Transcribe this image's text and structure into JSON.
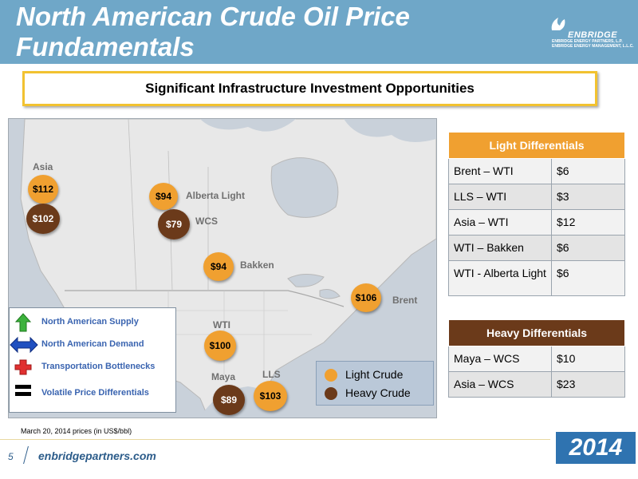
{
  "header": {
    "title": "North American Crude Oil Price Fundamentals"
  },
  "logo": {
    "name": "ENBRIDGE",
    "line1": "ENBRIDGE ENERGY PARTNERS, L.P.",
    "line2": "ENBRIDGE ENERGY MANAGEMENT, L.L.C."
  },
  "banner": {
    "text": "Significant Infrastructure Investment Opportunities"
  },
  "map": {
    "labels": {
      "asia": "Asia",
      "alberta_light": "Alberta Light",
      "wcs": "WCS",
      "bakken": "Bakken",
      "brent": "Brent",
      "wti": "WTI",
      "maya": "Maya",
      "lls": "LLS"
    },
    "prices": {
      "asia_light": "$112",
      "asia_heavy": "$102",
      "alberta_light": "$94",
      "wcs": "$79",
      "bakken": "$94",
      "brent": "$106",
      "wti": "$100",
      "maya": "$89",
      "lls": "$103"
    },
    "legend": [
      {
        "icon": "green-up-arrow-icon",
        "label": "North American Supply"
      },
      {
        "icon": "blue-double-arrow-icon",
        "label": "North American Demand"
      },
      {
        "icon": "red-plus-icon",
        "label": "Transportation Bottlenecks"
      },
      {
        "icon": "black-equals-icon",
        "label": "Volatile Price Differentials"
      }
    ],
    "crude_legend": {
      "light": "Light Crude",
      "heavy": "Heavy Crude"
    }
  },
  "light_differentials": {
    "title": "Light Differentials",
    "rows": [
      {
        "pair": "Brent – WTI",
        "value": "$6"
      },
      {
        "pair": "LLS – WTI",
        "value": "$3"
      },
      {
        "pair": "Asia – WTI",
        "value": "$12"
      },
      {
        "pair": "WTI – Bakken",
        "value": "$6"
      },
      {
        "pair": "WTI - Alberta Light",
        "value": "$6"
      }
    ]
  },
  "heavy_differentials": {
    "title": "Heavy Differentials",
    "rows": [
      {
        "pair": "Maya – WCS",
        "value": "$10"
      },
      {
        "pair": "Asia – WCS",
        "value": "$23"
      }
    ]
  },
  "footer": {
    "note": "March 20, 2014 prices (in US$/bbl)",
    "page": "5",
    "site": "enbridgepartners.com",
    "year": "2014"
  },
  "colors": {
    "header_bg": "#6FA7C8",
    "light_crude": "#F0A030",
    "heavy_crude": "#6B3A1A",
    "banner_border": "#F2C230",
    "year_bg": "#2F73B0"
  }
}
